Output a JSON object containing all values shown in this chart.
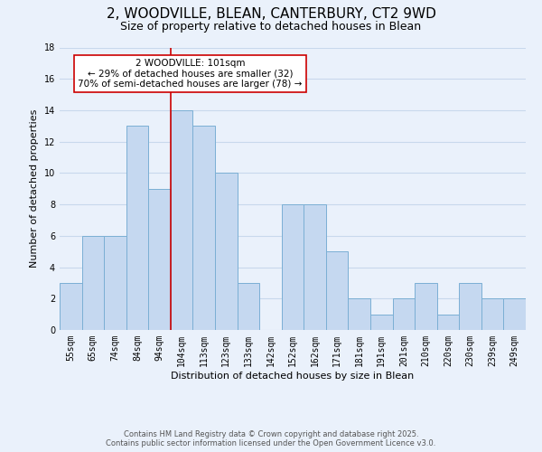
{
  "title": "2, WOODVILLE, BLEAN, CANTERBURY, CT2 9WD",
  "subtitle": "Size of property relative to detached houses in Blean",
  "xlabel": "Distribution of detached houses by size in Blean",
  "ylabel": "Number of detached properties",
  "categories": [
    "55sqm",
    "65sqm",
    "74sqm",
    "84sqm",
    "94sqm",
    "104sqm",
    "113sqm",
    "123sqm",
    "133sqm",
    "142sqm",
    "152sqm",
    "162sqm",
    "171sqm",
    "181sqm",
    "191sqm",
    "201sqm",
    "210sqm",
    "220sqm",
    "230sqm",
    "239sqm",
    "249sqm"
  ],
  "values": [
    3,
    6,
    6,
    13,
    9,
    14,
    13,
    10,
    3,
    0,
    8,
    8,
    5,
    2,
    1,
    2,
    3,
    1,
    3,
    2,
    2
  ],
  "bar_color": "#c5d8f0",
  "bar_edge_color": "#7bafd4",
  "annotation_text_line1": "2 WOODVILLE: 101sqm",
  "annotation_text_line2": "← 29% of detached houses are smaller (32)",
  "annotation_text_line3": "70% of semi-detached houses are larger (78) →",
  "annotation_box_color": "#ffffff",
  "annotation_box_edge": "#cc0000",
  "vline_color": "#cc0000",
  "vline_x_index": 5,
  "ylim": [
    0,
    18
  ],
  "yticks": [
    0,
    2,
    4,
    6,
    8,
    10,
    12,
    14,
    16,
    18
  ],
  "background_color": "#eaf1fb",
  "grid_color": "#c8d8ec",
  "title_fontsize": 11,
  "subtitle_fontsize": 9,
  "axis_label_fontsize": 8,
  "tick_fontsize": 7,
  "annotation_fontsize": 7.5,
  "footer_line1": "Contains HM Land Registry data © Crown copyright and database right 2025.",
  "footer_line2": "Contains public sector information licensed under the Open Government Licence v3.0."
}
